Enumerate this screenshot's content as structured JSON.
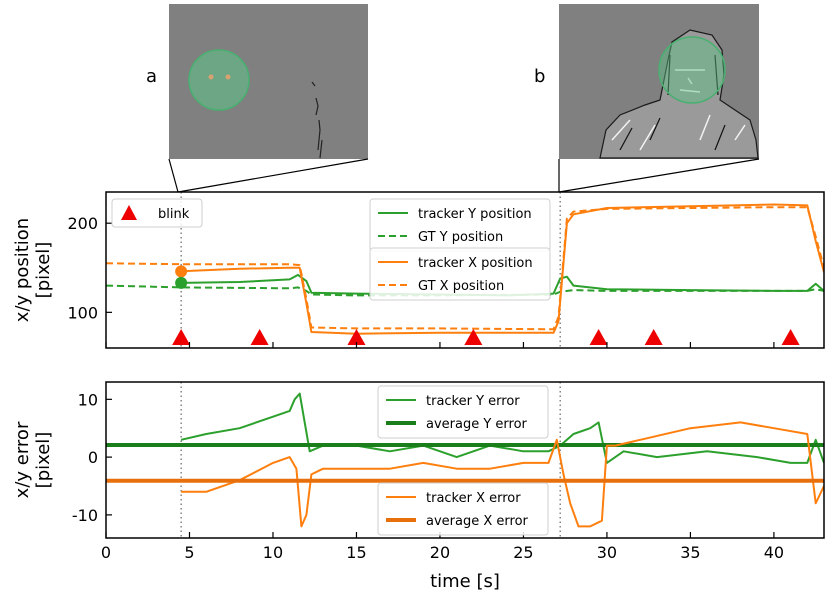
{
  "insets": [
    {
      "label": "a",
      "time": 4.5
    },
    {
      "label": "b",
      "time": 27.2
    }
  ],
  "colors": {
    "tracker_y": "#2ca02c",
    "average_y": "#1a7f1a",
    "tracker_x": "#ff7f0e",
    "average_x": "#e8700c",
    "blink": "#ee0000",
    "inset_bg": "#808080",
    "overlay": "#5cc488"
  },
  "chart_data": [
    {
      "type": "line",
      "xlim": [
        0,
        43
      ],
      "ylim": [
        60,
        235
      ],
      "ylabel_lines": [
        "x/y position",
        "[pixel]"
      ],
      "yticks": [
        100,
        200
      ],
      "blink_legend": "blink",
      "blinks": [
        4.5,
        9.2,
        15.0,
        22.0,
        29.5,
        32.8,
        41.0
      ],
      "vlines": [
        4.5,
        27.2
      ],
      "markers": [
        {
          "series": "tracker X position",
          "x": 4.5,
          "y": 146
        },
        {
          "series": "tracker Y position",
          "x": 4.5,
          "y": 133
        }
      ],
      "series": [
        {
          "name": "tracker Y position",
          "style": "solid",
          "color": "#2ca02c",
          "x": [
            4.5,
            8,
            11,
            11.5,
            12,
            12.3,
            15,
            20,
            24,
            26.8,
            27.2,
            27.6,
            28,
            30,
            35,
            40,
            42,
            42.5,
            43
          ],
          "y": [
            133,
            134,
            137,
            142,
            135,
            122,
            121,
            120,
            119,
            121,
            138,
            140,
            130,
            126,
            125,
            124,
            124,
            132,
            124
          ]
        },
        {
          "name": "GT Y position",
          "style": "dashed",
          "color": "#2ca02c",
          "x": [
            0,
            4.5,
            11,
            11.5,
            12,
            12.3,
            15,
            20,
            26.8,
            27.2,
            28,
            30,
            35,
            40,
            42,
            42.5,
            43
          ],
          "y": [
            130,
            128,
            127,
            128,
            124,
            120,
            119,
            119,
            120,
            123,
            125,
            124,
            124,
            124,
            124,
            126,
            124
          ]
        },
        {
          "name": "tracker X position",
          "style": "solid",
          "color": "#ff7f0e",
          "x": [
            4.5,
            8,
            11,
            11.6,
            12,
            12.3,
            15,
            20,
            26.8,
            27.1,
            27.6,
            28,
            30,
            35,
            40,
            42.0,
            42.5,
            43
          ],
          "y": [
            146,
            149,
            150,
            150,
            110,
            78,
            76,
            77,
            77,
            90,
            200,
            210,
            217,
            219,
            221,
            220,
            180,
            145
          ]
        },
        {
          "name": "GT X position",
          "style": "dashed",
          "color": "#ff7f0e",
          "x": [
            0,
            4.5,
            11,
            11.6,
            12,
            12.3,
            15,
            20,
            26.8,
            27.1,
            27.6,
            28,
            30,
            35,
            40,
            42.0,
            42.5,
            43
          ],
          "y": [
            155,
            154,
            154,
            153,
            115,
            83,
            82,
            82,
            81,
            95,
            205,
            213,
            216,
            217,
            218,
            218,
            185,
            150
          ]
        }
      ],
      "legend": [
        {
          "label": "tracker Y position",
          "style": "solid",
          "color": "#2ca02c"
        },
        {
          "label": "GT Y position",
          "style": "dashed",
          "color": "#2ca02c"
        },
        {
          "label": "tracker X position",
          "style": "solid",
          "color": "#ff7f0e"
        },
        {
          "label": "GT X position",
          "style": "dashed",
          "color": "#ff7f0e"
        }
      ]
    },
    {
      "type": "line",
      "xlim": [
        0,
        43
      ],
      "ylim": [
        -14,
        13
      ],
      "xlabel": "time [s]",
      "ylabel_lines": [
        "x/y error",
        "[pixel]"
      ],
      "xticks": [
        0,
        5,
        10,
        15,
        20,
        25,
        30,
        35,
        40
      ],
      "yticks": [
        -10,
        0,
        10
      ],
      "vlines": [
        4.5,
        27.2
      ],
      "series": [
        {
          "name": "tracker Y error",
          "color": "#2ca02c",
          "width": 2,
          "x": [
            4.5,
            6,
            8,
            10,
            11,
            11.3,
            11.6,
            11.9,
            12.2,
            13,
            15,
            17,
            19,
            21,
            23,
            25,
            26.5,
            27.2,
            28,
            29,
            29.5,
            30,
            31,
            33,
            36,
            39,
            41,
            42,
            42.5,
            43
          ],
          "y": [
            3,
            4,
            5,
            7,
            8,
            10,
            11,
            6,
            1,
            2,
            2,
            1,
            2,
            0,
            2,
            1,
            1,
            2,
            4,
            5,
            6,
            -1,
            1,
            0,
            1,
            0,
            -1,
            -1,
            3,
            -1
          ]
        },
        {
          "name": "average Y error",
          "color": "#1a7f1a",
          "width": 4,
          "x": [
            0,
            43
          ],
          "y": [
            2.1,
            2.1
          ]
        },
        {
          "name": "tracker X error",
          "color": "#ff7f0e",
          "width": 2,
          "x": [
            4.5,
            6,
            8,
            10,
            11,
            11.4,
            11.7,
            12,
            12.3,
            13,
            15,
            17,
            19,
            21,
            23,
            25,
            26.5,
            27,
            27.4,
            27.8,
            28.3,
            29,
            29.7,
            30,
            30.5,
            32,
            35,
            38,
            40,
            42,
            42.5,
            43
          ],
          "y": [
            -6,
            -6,
            -4,
            -1,
            0,
            -2,
            -12,
            -10,
            -3,
            -2,
            -2,
            -2,
            -1,
            -2,
            -2,
            -1,
            -1,
            3,
            -3,
            -8,
            -12,
            -12,
            -11,
            2,
            2,
            3,
            5,
            6,
            5,
            4,
            -8,
            -5
          ]
        },
        {
          "name": "average X error",
          "color": "#e8700c",
          "width": 4,
          "x": [
            0,
            43
          ],
          "y": [
            -4.1,
            -4.1
          ]
        }
      ],
      "legend_top": [
        {
          "label": "tracker Y error",
          "color": "#2ca02c",
          "width": 2
        },
        {
          "label": "average Y error",
          "color": "#1a7f1a",
          "width": 4
        }
      ],
      "legend_bottom": [
        {
          "label": "tracker X error",
          "color": "#ff7f0e",
          "width": 2
        },
        {
          "label": "average X error",
          "color": "#e8700c",
          "width": 4
        }
      ]
    }
  ]
}
